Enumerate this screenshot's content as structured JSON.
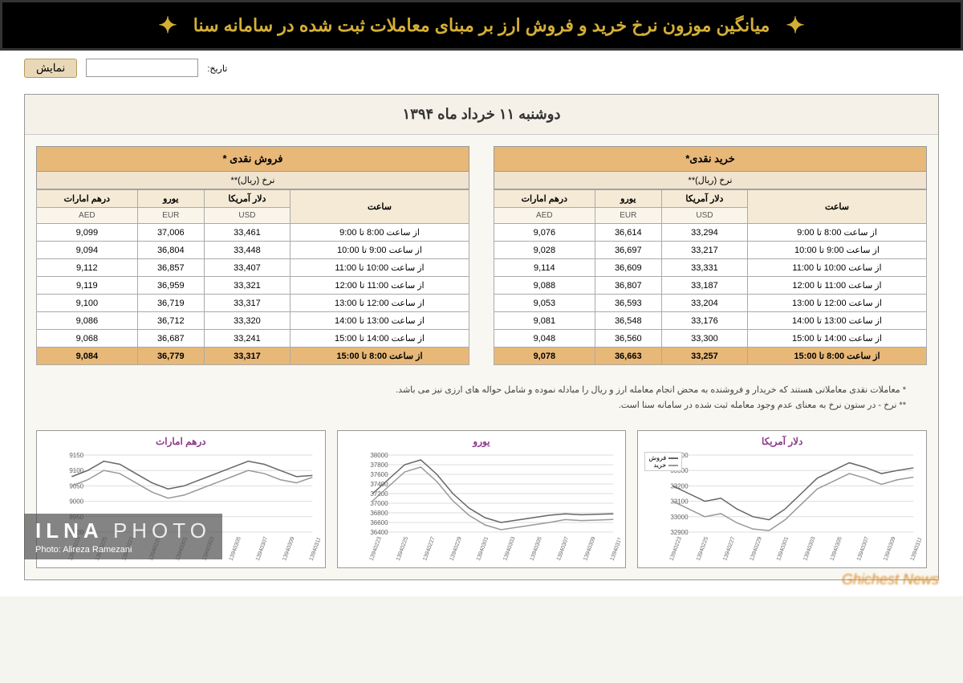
{
  "header": {
    "title": "میانگین موزون نرخ خرید و فروش ارز بر مبنای معاملات ثبت شده در سامانه سنا"
  },
  "filter": {
    "label": "تاریخ:",
    "btn": "نمایش",
    "value": ""
  },
  "date_title": "دوشنبه ۱۱ خرداد ماه ۱۳۹۴",
  "sell": {
    "title": "فروش نقدی *",
    "sub": "نرخ (ریال)**",
    "cols": {
      "time": "ساعت",
      "usd": "دلار آمریکا",
      "eur": "یورو",
      "aed": "درهم امارات"
    },
    "subs": {
      "usd": "USD",
      "eur": "EUR",
      "aed": "AED"
    },
    "rows": [
      {
        "t": "از ساعت 8:00 تا 9:00",
        "usd": "33,461",
        "eur": "37,006",
        "aed": "9,099"
      },
      {
        "t": "از ساعت 9:00 تا 10:00",
        "usd": "33,448",
        "eur": "36,804",
        "aed": "9,094"
      },
      {
        "t": "از ساعت 10:00 تا 11:00",
        "usd": "33,407",
        "eur": "36,857",
        "aed": "9,112"
      },
      {
        "t": "از ساعت 11:00 تا 12:00",
        "usd": "33,321",
        "eur": "36,959",
        "aed": "9,119"
      },
      {
        "t": "از ساعت 12:00 تا 13:00",
        "usd": "33,317",
        "eur": "36,719",
        "aed": "9,100"
      },
      {
        "t": "از ساعت 13:00 تا 14:00",
        "usd": "33,320",
        "eur": "36,712",
        "aed": "9,086"
      },
      {
        "t": "از ساعت 14:00 تا 15:00",
        "usd": "33,241",
        "eur": "36,687",
        "aed": "9,068"
      }
    ],
    "total": {
      "t": "از ساعت 8:00 تا 15:00",
      "usd": "33,317",
      "eur": "36,779",
      "aed": "9,084"
    }
  },
  "buy": {
    "title": "خرید نقدی*",
    "sub": "نرخ (ریال)**",
    "cols": {
      "time": "ساعت",
      "usd": "دلار آمریکا",
      "eur": "یورو",
      "aed": "درهم امارات"
    },
    "subs": {
      "usd": "USD",
      "eur": "EUR",
      "aed": "AED"
    },
    "rows": [
      {
        "t": "از ساعت 8:00 تا 9:00",
        "usd": "33,294",
        "eur": "36,614",
        "aed": "9,076"
      },
      {
        "t": "از ساعت 9:00 تا 10:00",
        "usd": "33,217",
        "eur": "36,697",
        "aed": "9,028"
      },
      {
        "t": "از ساعت 10:00 تا 11:00",
        "usd": "33,331",
        "eur": "36,609",
        "aed": "9,114"
      },
      {
        "t": "از ساعت 11:00 تا 12:00",
        "usd": "33,187",
        "eur": "36,807",
        "aed": "9,088"
      },
      {
        "t": "از ساعت 12:00 تا 13:00",
        "usd": "33,204",
        "eur": "36,593",
        "aed": "9,053"
      },
      {
        "t": "از ساعت 13:00 تا 14:00",
        "usd": "33,176",
        "eur": "36,548",
        "aed": "9,081"
      },
      {
        "t": "از ساعت 14:00 تا 15:00",
        "usd": "33,300",
        "eur": "36,560",
        "aed": "9,048"
      }
    ],
    "total": {
      "t": "از ساعت 8:00 تا 15:00",
      "usd": "33,257",
      "eur": "36,663",
      "aed": "9,078"
    }
  },
  "notes": {
    "n1": "* معاملات نقدی معاملاتی هستند که خریدار و فروشنده به محض انجام معامله ارز و ریال را مبادله نموده و شامل حواله های ارزی نیز می باشد.",
    "n2": "** نرخ - در ستون نرخ به معنای عدم وجود معامله ثبت شده در سامانه سنا است."
  },
  "charts": {
    "legend": {
      "sell": "فروش",
      "buy": "خرید"
    },
    "x_labels": [
      "13940223",
      "13940225",
      "13940227",
      "13940229",
      "13940301",
      "13940303",
      "13940305",
      "13940307",
      "13940309",
      "13940311"
    ],
    "aed": {
      "title": "درهم امارات",
      "ylim": [
        8900,
        9150
      ],
      "yticks": [
        8900,
        8950,
        9000,
        9050,
        9100,
        9150
      ],
      "sell": [
        9080,
        9100,
        9130,
        9120,
        9090,
        9060,
        9040,
        9050,
        9070,
        9090,
        9110,
        9130,
        9120,
        9100,
        9080,
        9084
      ],
      "buy": [
        9050,
        9070,
        9100,
        9090,
        9060,
        9030,
        9010,
        9020,
        9040,
        9060,
        9080,
        9100,
        9090,
        9070,
        9060,
        9078
      ]
    },
    "eur": {
      "title": "یورو",
      "ylim": [
        36400,
        38000
      ],
      "yticks": [
        36400,
        36600,
        36800,
        37000,
        37200,
        37400,
        37600,
        37800,
        38000
      ],
      "sell": [
        37200,
        37500,
        37800,
        37900,
        37600,
        37200,
        36900,
        36700,
        36600,
        36650,
        36700,
        36750,
        36780,
        36760,
        36770,
        36779
      ],
      "buy": [
        37050,
        37350,
        37650,
        37750,
        37450,
        37050,
        36750,
        36550,
        36450,
        36500,
        36550,
        36600,
        36660,
        36640,
        36650,
        36663
      ]
    },
    "usd": {
      "title": "دلار آمریکا",
      "ylim": [
        32900,
        33400
      ],
      "yticks": [
        32900,
        33000,
        33100,
        33200,
        33300,
        33400
      ],
      "sell": [
        33200,
        33150,
        33100,
        33120,
        33050,
        33000,
        32980,
        33050,
        33150,
        33250,
        33300,
        33350,
        33320,
        33280,
        33300,
        33317
      ],
      "buy": [
        33100,
        33050,
        33000,
        33020,
        32960,
        32920,
        32910,
        32980,
        33080,
        33180,
        33230,
        33280,
        33250,
        33210,
        33240,
        33257
      ]
    }
  },
  "watermark": {
    "brand_a": "ILNA",
    "brand_b": "PHOTO",
    "credit": "Photo: Alireza Ramezani"
  },
  "bottom_tag": "Ghichest News"
}
